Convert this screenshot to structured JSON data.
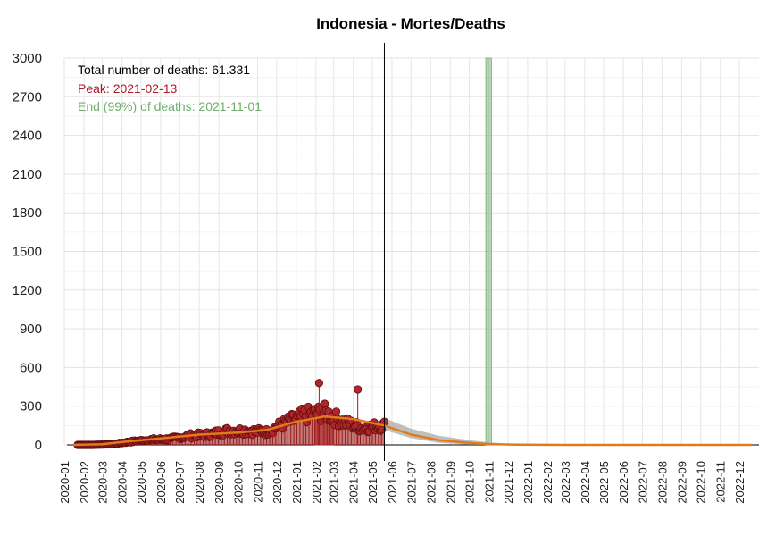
{
  "chart_data": {
    "type": "scatter",
    "title": "Indonesia - Mortes/Deaths",
    "xlabel": "",
    "ylabel": "",
    "ylim": [
      0,
      3000
    ],
    "y_ticks": [
      0,
      300,
      600,
      900,
      1200,
      1500,
      1800,
      2100,
      2400,
      2700,
      3000
    ],
    "x_range": [
      "2020-01-01",
      "2023-01-01"
    ],
    "x_tick_labels": [
      "2020-01",
      "2020-02",
      "2020-03",
      "2020-04",
      "2020-05",
      "2020-06",
      "2020-07",
      "2020-08",
      "2020-09",
      "2020-10",
      "2020-11",
      "2020-12",
      "2021-01",
      "2021-02",
      "2021-03",
      "2021-04",
      "2021-05",
      "2021-06",
      "2021-07",
      "2021-08",
      "2021-09",
      "2021-10",
      "2021-11",
      "2021-12",
      "2022-01",
      "2022-02",
      "2022-03",
      "2022-04",
      "2022-05",
      "2022-06",
      "2022-07",
      "2022-08",
      "2022-09",
      "2022-10",
      "2022-11",
      "2022-12"
    ],
    "grid": true,
    "annotations": {
      "total": "Total number of deaths: 61.331",
      "peak": "Peak: 2021-02-13",
      "end": "End (99%) of deaths: 2021-11-01"
    },
    "vertical_line_date": "2021-05-20",
    "peak_band": {
      "from": "2021-01-30",
      "to": "2021-03-01",
      "value": 220
    },
    "end_band": {
      "from": "2021-10-27",
      "to": "2021-11-05",
      "value": 3000
    },
    "observed_monthly_avg": [
      {
        "date": "2020-01-15",
        "value": 0
      },
      {
        "date": "2020-02-15",
        "value": 0
      },
      {
        "date": "2020-03-15",
        "value": 5
      },
      {
        "date": "2020-04-15",
        "value": 25
      },
      {
        "date": "2020-05-15",
        "value": 40
      },
      {
        "date": "2020-06-15",
        "value": 45
      },
      {
        "date": "2020-07-15",
        "value": 70
      },
      {
        "date": "2020-08-15",
        "value": 80
      },
      {
        "date": "2020-09-15",
        "value": 110
      },
      {
        "date": "2020-10-15",
        "value": 110
      },
      {
        "date": "2020-11-15",
        "value": 100
      },
      {
        "date": "2020-12-15",
        "value": 170
      },
      {
        "date": "2021-01-15",
        "value": 230
      },
      {
        "date": "2021-02-15",
        "value": 250
      },
      {
        "date": "2021-03-15",
        "value": 180
      },
      {
        "date": "2021-04-15",
        "value": 130
      },
      {
        "date": "2021-05-15",
        "value": 150
      }
    ],
    "outliers": [
      {
        "date": "2021-02-06",
        "value": 480
      },
      {
        "date": "2021-04-08",
        "value": 430
      }
    ],
    "series": [
      {
        "name": "fitted",
        "color": "#e07b1a",
        "points": [
          {
            "date": "2020-01-15",
            "value": 0
          },
          {
            "date": "2020-03-01",
            "value": 5
          },
          {
            "date": "2020-04-15",
            "value": 30
          },
          {
            "date": "2020-06-01",
            "value": 50
          },
          {
            "date": "2020-08-01",
            "value": 80
          },
          {
            "date": "2020-10-01",
            "value": 95
          },
          {
            "date": "2020-11-15",
            "value": 115
          },
          {
            "date": "2021-01-01",
            "value": 180
          },
          {
            "date": "2021-02-15",
            "value": 220
          },
          {
            "date": "2021-04-01",
            "value": 200
          },
          {
            "date": "2021-05-20",
            "value": 150
          },
          {
            "date": "2021-07-01",
            "value": 80
          },
          {
            "date": "2021-08-15",
            "value": 35
          },
          {
            "date": "2021-10-01",
            "value": 15
          },
          {
            "date": "2021-11-01",
            "value": 6
          },
          {
            "date": "2021-12-15",
            "value": 2
          },
          {
            "date": "2022-03-01",
            "value": 0
          },
          {
            "date": "2022-12-20",
            "value": 0
          }
        ]
      }
    ],
    "colors": {
      "points": "#9b1b1b",
      "peak": "#c9303a",
      "end": "#6fae6f",
      "fit": "#e07b1a",
      "band": "#a9a9a9"
    }
  }
}
